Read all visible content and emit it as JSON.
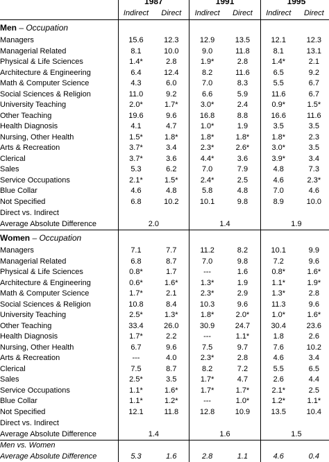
{
  "years": [
    "1987",
    "1991",
    "1995"
  ],
  "subheaders": [
    "Indirect",
    "Direct",
    "Indirect",
    "Direct",
    "Indirect",
    "Direct"
  ],
  "men": {
    "title_bold": "Men",
    "title_rest": " – Occupation",
    "rows": [
      [
        "Managers",
        "15.6",
        "12.3",
        "12.9",
        "13.5",
        "12.1",
        "12.3"
      ],
      [
        "Managerial Related",
        "8.1",
        "10.0",
        "9.0",
        "11.8",
        "8.1",
        "13.1"
      ],
      [
        "Physical & Life Sciences",
        "1.4*",
        "2.8",
        "1.9*",
        "2.8",
        "1.4*",
        "2.1"
      ],
      [
        "Architecture & Engineering",
        "6.4",
        "12.4",
        "8.2",
        "11.6",
        "6.5",
        "9.2"
      ],
      [
        "Math & Computer Science",
        "4.3",
        "6.0",
        "7.0",
        "8.3",
        "5.5",
        "6.7"
      ],
      [
        "Social Sciences & Religion",
        "11.0",
        "9.2",
        "6.6",
        "5.9",
        "11.6",
        "6.7"
      ],
      [
        "University Teaching",
        "2.0*",
        "1.7*",
        "3.0*",
        "2.4",
        "0.9*",
        "1.5*"
      ],
      [
        "Other Teaching",
        "19.6",
        "9.6",
        "16.8",
        "8.8",
        "16.6",
        "11.6"
      ],
      [
        "Health Diagnosis",
        "4.1",
        "4.7",
        "1.0*",
        "1.9",
        "3.5",
        "3.5"
      ],
      [
        "Nursing, Other Health",
        "1.5*",
        "1.8*",
        "1.8*",
        "1.8*",
        "1.8*",
        "2.3"
      ],
      [
        "Arts & Recreation",
        "3.7*",
        "3.4",
        "2.3*",
        "2.6*",
        "3.0*",
        "3.5"
      ],
      [
        "Clerical",
        "3.7*",
        "3.6",
        "4.4*",
        "3.6",
        "3.9*",
        "3.4"
      ],
      [
        "Sales",
        "5.3",
        "6.2",
        "7.0",
        "7.9",
        "4.8",
        "7.3"
      ],
      [
        "Service Occupations",
        "2.1*",
        "1.5*",
        "2.4*",
        "2.5",
        "4.6",
        "2.3*"
      ],
      [
        "Blue Collar",
        "4.6",
        "4.8",
        "5.8",
        "4.8",
        "7.0",
        "4.6"
      ],
      [
        "Not Specified",
        "6.8",
        "10.2",
        "10.1",
        "9.8",
        "8.9",
        "10.0"
      ]
    ],
    "avg_label_1": "Direct vs. Indirect",
    "avg_label_2": "Average Absolute Difference",
    "avg_values": [
      "2.0",
      "1.4",
      "1.9"
    ]
  },
  "women": {
    "title_bold": "Women",
    "title_rest": " – Occupation",
    "rows": [
      [
        "Managers",
        "7.1",
        "7.7",
        "11.2",
        "8.2",
        "10.1",
        "9.9"
      ],
      [
        "Managerial Related",
        "6.8",
        "8.7",
        "7.0",
        "9.8",
        "7.2",
        "9.6"
      ],
      [
        "Physical & Life Sciences",
        "0.8*",
        "1.7",
        "---",
        "1.6",
        "0.8*",
        "1.6*"
      ],
      [
        "Architecture & Engineering",
        "0.6*",
        "1.6*",
        "1.3*",
        "1.9",
        "1.1*",
        "1.9*"
      ],
      [
        "Math & Computer Science",
        "1.7*",
        "2.1",
        "2.3*",
        "2.9",
        "1.3*",
        "2.8"
      ],
      [
        "Social Sciences & Religion",
        "10.8",
        "8.4",
        "10.3",
        "9.6",
        "11.3",
        "9.6"
      ],
      [
        "University Teaching",
        "2.5*",
        "1.3*",
        "1.8*",
        "2.0*",
        "1.0*",
        "1.6*"
      ],
      [
        "Other Teaching",
        "33.4",
        "26.0",
        "30.9",
        "24.7",
        "30.4",
        "23.6"
      ],
      [
        "Health Diagnosis",
        "1.7*",
        "2.2",
        "---",
        "1.1*",
        "1.8",
        "2.6"
      ],
      [
        "Nursing, Other Health",
        "6.7",
        "9.6",
        "7.5",
        "9.7",
        "7.6",
        "10.2"
      ],
      [
        "Arts & Recreation",
        "---",
        "4.0",
        "2.3*",
        "2.8",
        "4.6",
        "3.4"
      ],
      [
        "Clerical",
        "7.5",
        "8.7",
        "8.2",
        "7.2",
        "5.5",
        "6.5"
      ],
      [
        "Sales",
        "2.5*",
        "3.5",
        "1.7*",
        "4.7",
        "2.6",
        "4.4"
      ],
      [
        "Service Occupations",
        "1.1*",
        "1.6*",
        "1.7*",
        "1.7*",
        "2.1*",
        "2.5"
      ],
      [
        "Blue Collar",
        "1.1*",
        "1.2*",
        "---",
        "1.0*",
        "1.2*",
        "1.1*"
      ],
      [
        "Not Specified",
        "12.1",
        "11.8",
        "12.8",
        "10.9",
        "13.5",
        "10.4"
      ]
    ],
    "avg_label_1": "Direct vs. Indirect",
    "avg_label_2": "Average Absolute Difference",
    "avg_values": [
      "1.4",
      "1.6",
      "1.5"
    ]
  },
  "final": {
    "label_1": "Men vs. Women",
    "label_2": "Average Absolute Difference",
    "values": [
      "5.3",
      "1.6",
      "2.8",
      "1.1",
      "4.6",
      "0.4"
    ]
  }
}
